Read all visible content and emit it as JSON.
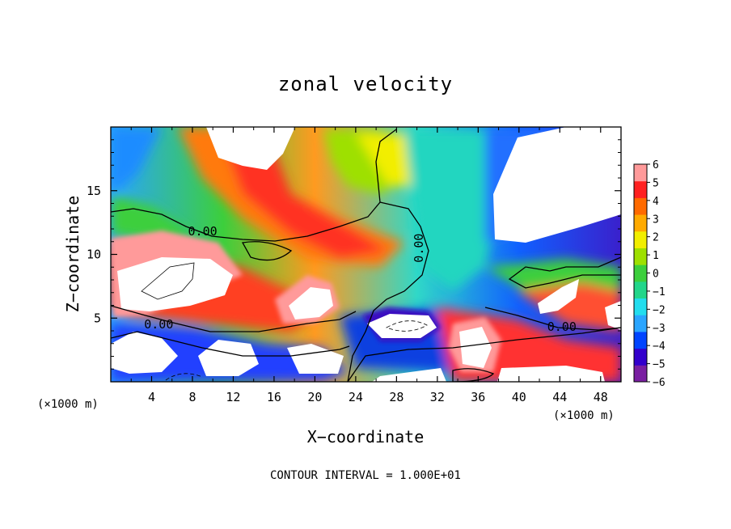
{
  "chart_data": {
    "type": "heatmap",
    "title": "zonal velocity",
    "xlabel": "X−coordinate",
    "ylabel": "Z−coordinate",
    "x_unit_left": "(×1000 m)",
    "x_unit_right": "(×1000 m)",
    "xlim": [
      0,
      50
    ],
    "ylim": [
      0,
      20
    ],
    "x_ticks": [
      4,
      8,
      12,
      16,
      20,
      24,
      28,
      32,
      36,
      40,
      44,
      48
    ],
    "y_ticks": [
      5,
      10,
      15
    ],
    "colorbar": {
      "min": -6,
      "max": 6,
      "ticks": [
        "6",
        "5",
        "4",
        "3",
        "2",
        "1",
        "0",
        "−1",
        "−2",
        "−3",
        "−4",
        "−5",
        "−6"
      ]
    },
    "contour_labels": [
      {
        "text": "0.00",
        "x": 9,
        "z": 11.5
      },
      {
        "text": "0.00",
        "x": 30.6,
        "z": 10.5
      },
      {
        "text": "0.00",
        "x": 4.7,
        "z": 4.2
      },
      {
        "text": "0.00",
        "x": 44.2,
        "z": 4.0
      }
    ],
    "contour_interval_text": "CONTOUR INTERVAL = 1.000E+01"
  },
  "colors": {
    "scale": [
      "#7a1fa2",
      "#3300cc",
      "#0044ff",
      "#2aa5ff",
      "#22ddee",
      "#22d68a",
      "#3ccf3c",
      "#9ee000",
      "#f2ee00",
      "#ffaa00",
      "#ff6a00",
      "#ff2020",
      "#ff9a9a"
    ]
  }
}
